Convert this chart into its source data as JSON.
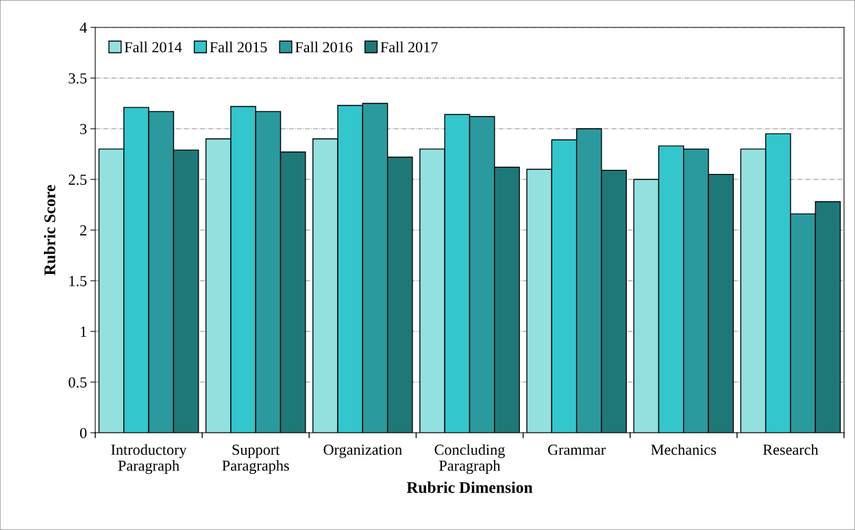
{
  "chart_data": {
    "type": "bar",
    "xlabel": "Rubric Dimension",
    "ylabel": "Rubric Score",
    "categories": [
      "Introductory\nParagraph",
      "Support\nParagraphs",
      "Organization",
      "Concluding\nParagraph",
      "Grammar",
      "Mechanics",
      "Research"
    ],
    "series": [
      {
        "name": "Fall 2014",
        "color": "#93e0e0",
        "values": [
          2.8,
          2.9,
          2.9,
          2.8,
          2.6,
          2.5,
          2.8
        ]
      },
      {
        "name": "Fall 2015",
        "color": "#33c6cc",
        "values": [
          3.21,
          3.22,
          3.23,
          3.14,
          2.89,
          2.83,
          2.95
        ]
      },
      {
        "name": "Fall 2016",
        "color": "#2a9a9e",
        "values": [
          3.17,
          3.17,
          3.25,
          3.12,
          3.0,
          2.8,
          2.16
        ]
      },
      {
        "name": "Fall 2017",
        "color": "#1f7878",
        "values": [
          2.79,
          2.77,
          2.72,
          2.62,
          2.59,
          2.55,
          2.28
        ]
      }
    ],
    "ylim": [
      0,
      4
    ],
    "yticks": [
      0,
      0.5,
      1,
      1.5,
      2,
      2.5,
      3,
      3.5,
      4
    ],
    "grid": "y",
    "legend": "top left"
  }
}
